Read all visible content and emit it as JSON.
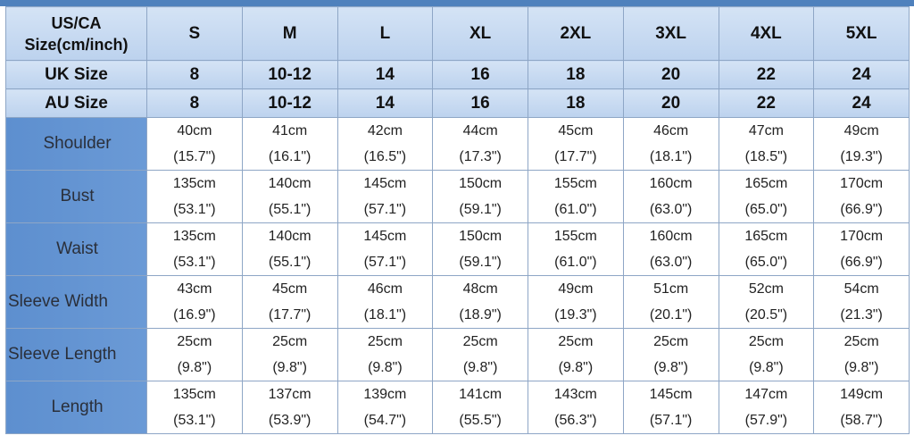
{
  "table": {
    "header_rows": [
      [
        "US/CA Size(cm/inch)",
        "S",
        "M",
        "L",
        "XL",
        "2XL",
        "3XL",
        "4XL",
        "5XL"
      ],
      [
        "UK Size",
        "8",
        "10-12",
        "14",
        "16",
        "18",
        "20",
        "22",
        "24"
      ],
      [
        "AU Size",
        "8",
        "10-12",
        "14",
        "16",
        "18",
        "20",
        "22",
        "24"
      ]
    ],
    "rows": [
      {
        "label": "Shoulder",
        "cells": [
          [
            "40cm",
            "(15.7\")"
          ],
          [
            "41cm",
            "(16.1\")"
          ],
          [
            "42cm",
            "(16.5\")"
          ],
          [
            "44cm",
            "(17.3\")"
          ],
          [
            "45cm",
            "(17.7\")"
          ],
          [
            "46cm",
            "(18.1\")"
          ],
          [
            "47cm",
            "(18.5\")"
          ],
          [
            "49cm",
            "(19.3\")"
          ]
        ]
      },
      {
        "label": "Bust",
        "cells": [
          [
            "135cm",
            "(53.1\")"
          ],
          [
            "140cm",
            "(55.1\")"
          ],
          [
            "145cm",
            "(57.1\")"
          ],
          [
            "150cm",
            "(59.1\")"
          ],
          [
            "155cm",
            "(61.0\")"
          ],
          [
            "160cm",
            "(63.0\")"
          ],
          [
            "165cm",
            "(65.0\")"
          ],
          [
            "170cm",
            "(66.9\")"
          ]
        ]
      },
      {
        "label": "Waist",
        "cells": [
          [
            "135cm",
            "(53.1\")"
          ],
          [
            "140cm",
            "(55.1\")"
          ],
          [
            "145cm",
            "(57.1\")"
          ],
          [
            "150cm",
            "(59.1\")"
          ],
          [
            "155cm",
            "(61.0\")"
          ],
          [
            "160cm",
            "(63.0\")"
          ],
          [
            "165cm",
            "(65.0\")"
          ],
          [
            "170cm",
            "(66.9\")"
          ]
        ]
      },
      {
        "label": "Sleeve Width",
        "cells": [
          [
            "43cm",
            "(16.9\")"
          ],
          [
            "45cm",
            "(17.7\")"
          ],
          [
            "46cm",
            "(18.1\")"
          ],
          [
            "48cm",
            "(18.9\")"
          ],
          [
            "49cm",
            "(19.3\")"
          ],
          [
            "51cm",
            "(20.1\")"
          ],
          [
            "52cm",
            "(20.5\")"
          ],
          [
            "54cm",
            "(21.3\")"
          ]
        ]
      },
      {
        "label": "Sleeve Length",
        "cells": [
          [
            "25cm",
            "(9.8\")"
          ],
          [
            "25cm",
            "(9.8\")"
          ],
          [
            "25cm",
            "(9.8\")"
          ],
          [
            "25cm",
            "(9.8\")"
          ],
          [
            "25cm",
            "(9.8\")"
          ],
          [
            "25cm",
            "(9.8\")"
          ],
          [
            "25cm",
            "(9.8\")"
          ],
          [
            "25cm",
            "(9.8\")"
          ]
        ]
      },
      {
        "label": "Length",
        "cells": [
          [
            "135cm",
            "(53.1\")"
          ],
          [
            "137cm",
            "(53.9\")"
          ],
          [
            "139cm",
            "(54.7\")"
          ],
          [
            "141cm",
            "(55.5\")"
          ],
          [
            "143cm",
            "(56.3\")"
          ],
          [
            "145cm",
            "(57.1\")"
          ],
          [
            "147cm",
            "(57.9\")"
          ],
          [
            "149cm",
            "(58.7\")"
          ]
        ]
      }
    ]
  }
}
